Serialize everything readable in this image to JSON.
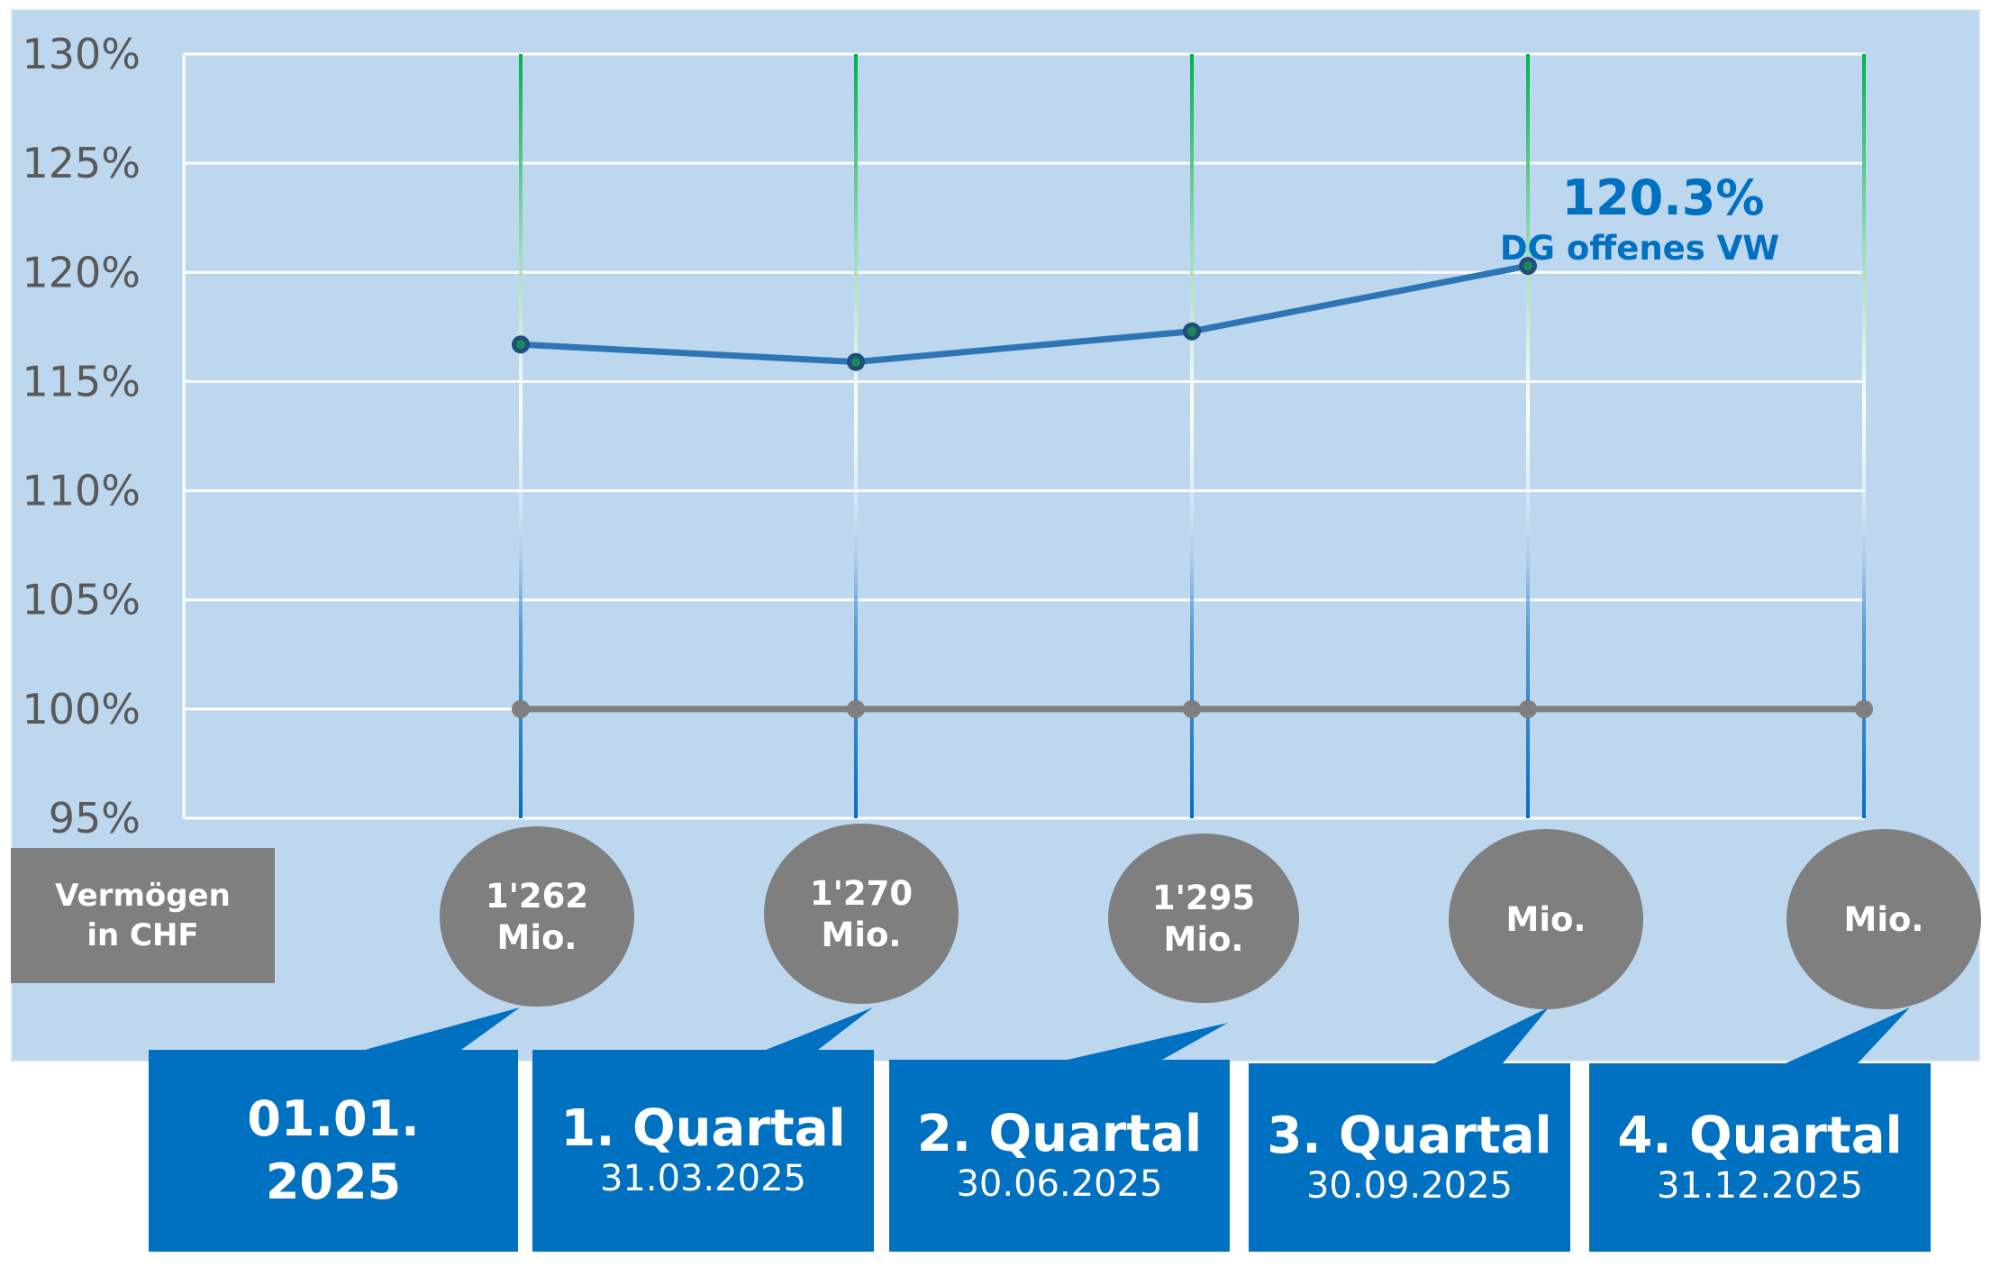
{
  "chart_data": {
    "type": "line",
    "y_axis": {
      "min": 95,
      "max": 130,
      "step": 5,
      "tick_labels": [
        "95%",
        "100%",
        "105%",
        "110%",
        "115%",
        "120%",
        "125%",
        "130%"
      ]
    },
    "grid": true,
    "categories": [
      "01.01.2025",
      "31.03.2025",
      "30.06.2025",
      "30.09.2025",
      "31.12.2025"
    ],
    "series": [
      {
        "key": "coverage",
        "color": "#2e75b6",
        "values": [
          116.7,
          115.9,
          117.3,
          120.3,
          null
        ]
      },
      {
        "key": "baseline",
        "color": "#7f7f7f",
        "values": [
          100,
          100,
          100,
          100,
          100
        ]
      }
    ],
    "annotation": {
      "value": "120.3%",
      "label": "DG offenes VW",
      "point_index": 3
    },
    "legend_label": "Vermögen\nin CHF",
    "asset_bubbles": [
      "1'262\nMio.",
      "1'270\nMio.",
      "1'295\nMio.",
      "Mio.",
      "Mio."
    ],
    "periods": [
      {
        "title": "01.01.\n2025",
        "date": ""
      },
      {
        "title": "1. Quartal",
        "date": "31.03.2025"
      },
      {
        "title": "2. Quartal",
        "date": "30.06.2025"
      },
      {
        "title": "3. Quartal",
        "date": "30.09.2025"
      },
      {
        "title": "4. Quartal",
        "date": "31.12.2025"
      }
    ],
    "colors": {
      "panel": "#bdd7ee",
      "grid": "#ffffff",
      "bubble": "#7f7f7f",
      "box": "#0070c0",
      "vline_top": "#00b050",
      "vline_bottom": "#0070c0"
    }
  }
}
